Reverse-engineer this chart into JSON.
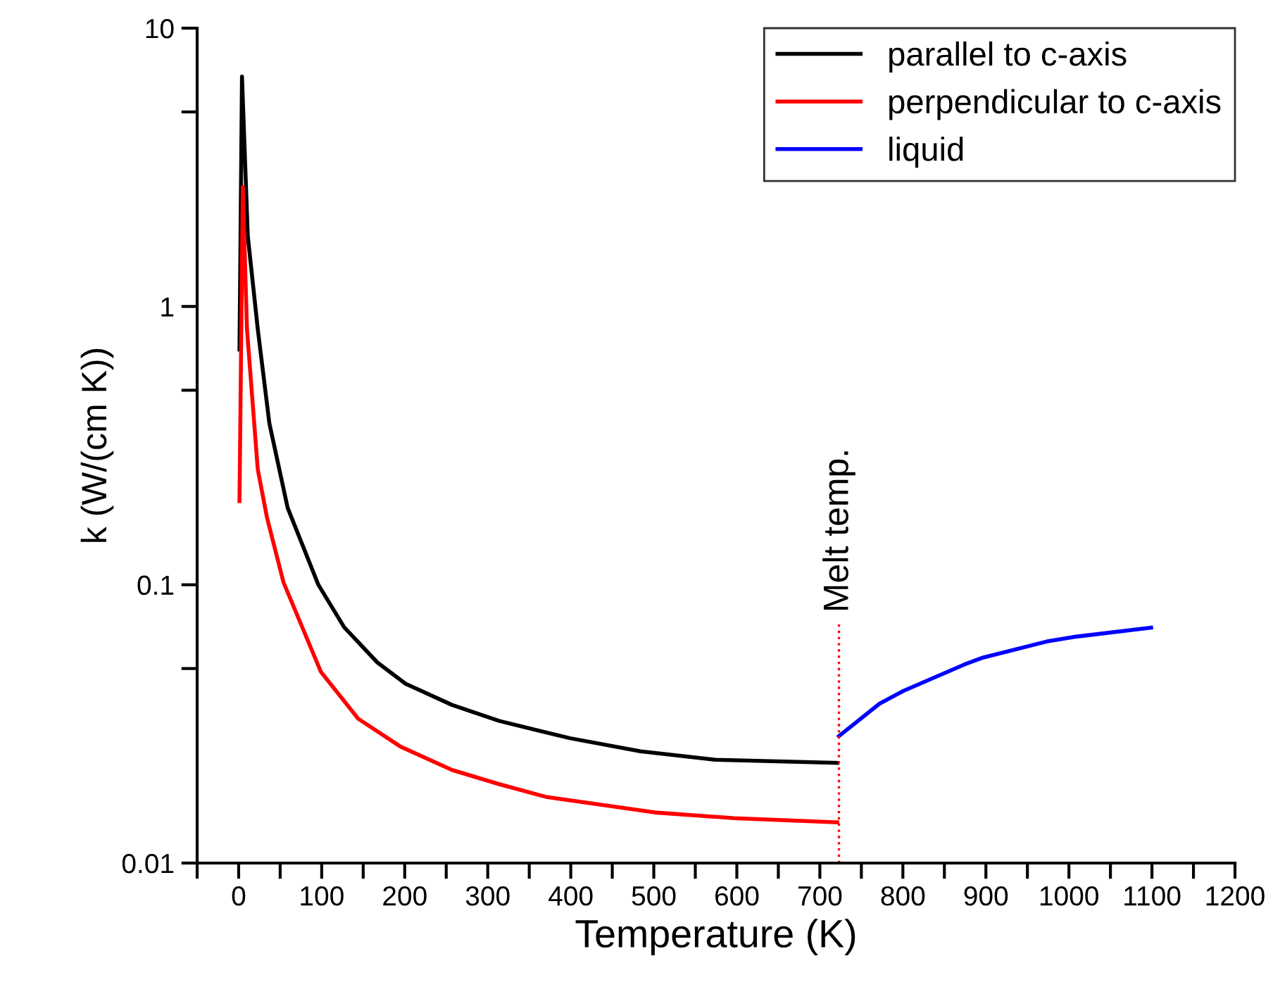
{
  "chart_data": {
    "type": "line",
    "xlabel": "Temperature (K)",
    "ylabel": "k (W/(cm K))",
    "log": "y",
    "grid": false,
    "legend": "top right",
    "line_style": "solid",
    "marker": "none",
    "xlim": [
      -50,
      1200
    ],
    "ylim": [
      0.01,
      10
    ],
    "xticks": [
      {
        "value": -50,
        "label": null
      },
      0,
      {
        "value": 50,
        "label": null
      },
      100,
      {
        "value": 150,
        "label": null
      },
      200,
      {
        "value": 250,
        "label": null
      },
      300,
      {
        "value": 350,
        "label": null
      },
      400,
      {
        "value": 450,
        "label": null
      },
      500,
      {
        "value": 550,
        "label": null
      },
      600,
      {
        "value": 650,
        "label": null
      },
      700,
      {
        "value": 750,
        "label": null
      },
      800,
      {
        "value": 850,
        "label": null
      },
      900,
      {
        "value": 950,
        "label": null
      },
      1000,
      {
        "value": 1050,
        "label": null
      },
      1100,
      {
        "value": 1150,
        "label": null
      },
      1200
    ],
    "yticks": [
      0.01,
      {
        "value": 0.05,
        "label": null
      },
      0.1,
      {
        "value": 0.5,
        "label": null
      },
      1,
      {
        "value": 5,
        "label": null
      },
      10
    ],
    "series": [
      {
        "name": "parallel to c-axis",
        "color": "#000000",
        "x": [
          1,
          4,
          11,
          23,
          37,
          59,
          96,
          127,
          167,
          201,
          257,
          314,
          399,
          484,
          574,
          721
        ],
        "values": [
          0.7,
          6.7,
          1.79,
          0.83,
          0.38,
          0.189,
          0.1,
          0.0704,
          0.0526,
          0.0441,
          0.037,
          0.0324,
          0.0281,
          0.0252,
          0.0235,
          0.0229
        ]
      },
      {
        "name": "perpendicular to c-axis",
        "color": "#ff0000",
        "x": [
          1,
          5,
          10,
          23,
          34,
          54,
          99,
          144,
          195,
          257,
          314,
          370,
          501,
          597,
          721
        ],
        "values": [
          0.2,
          2.69,
          0.83,
          0.26,
          0.175,
          0.102,
          0.0487,
          0.033,
          0.0262,
          0.0216,
          0.0192,
          0.0173,
          0.0152,
          0.0145,
          0.014
        ]
      },
      {
        "name": "liquid",
        "color": "#0000ff",
        "x": [
          723,
          772,
          801,
          874,
          897,
          973,
          1005,
          1099
        ],
        "values": [
          0.0286,
          0.0374,
          0.0416,
          0.0517,
          0.0548,
          0.0625,
          0.0649,
          0.0701
        ]
      }
    ],
    "ref_lines": [
      {
        "axis": "x",
        "value": 723,
        "label": "Melt temp.",
        "color": "#ff0000",
        "line_style": "dotted"
      }
    ]
  }
}
